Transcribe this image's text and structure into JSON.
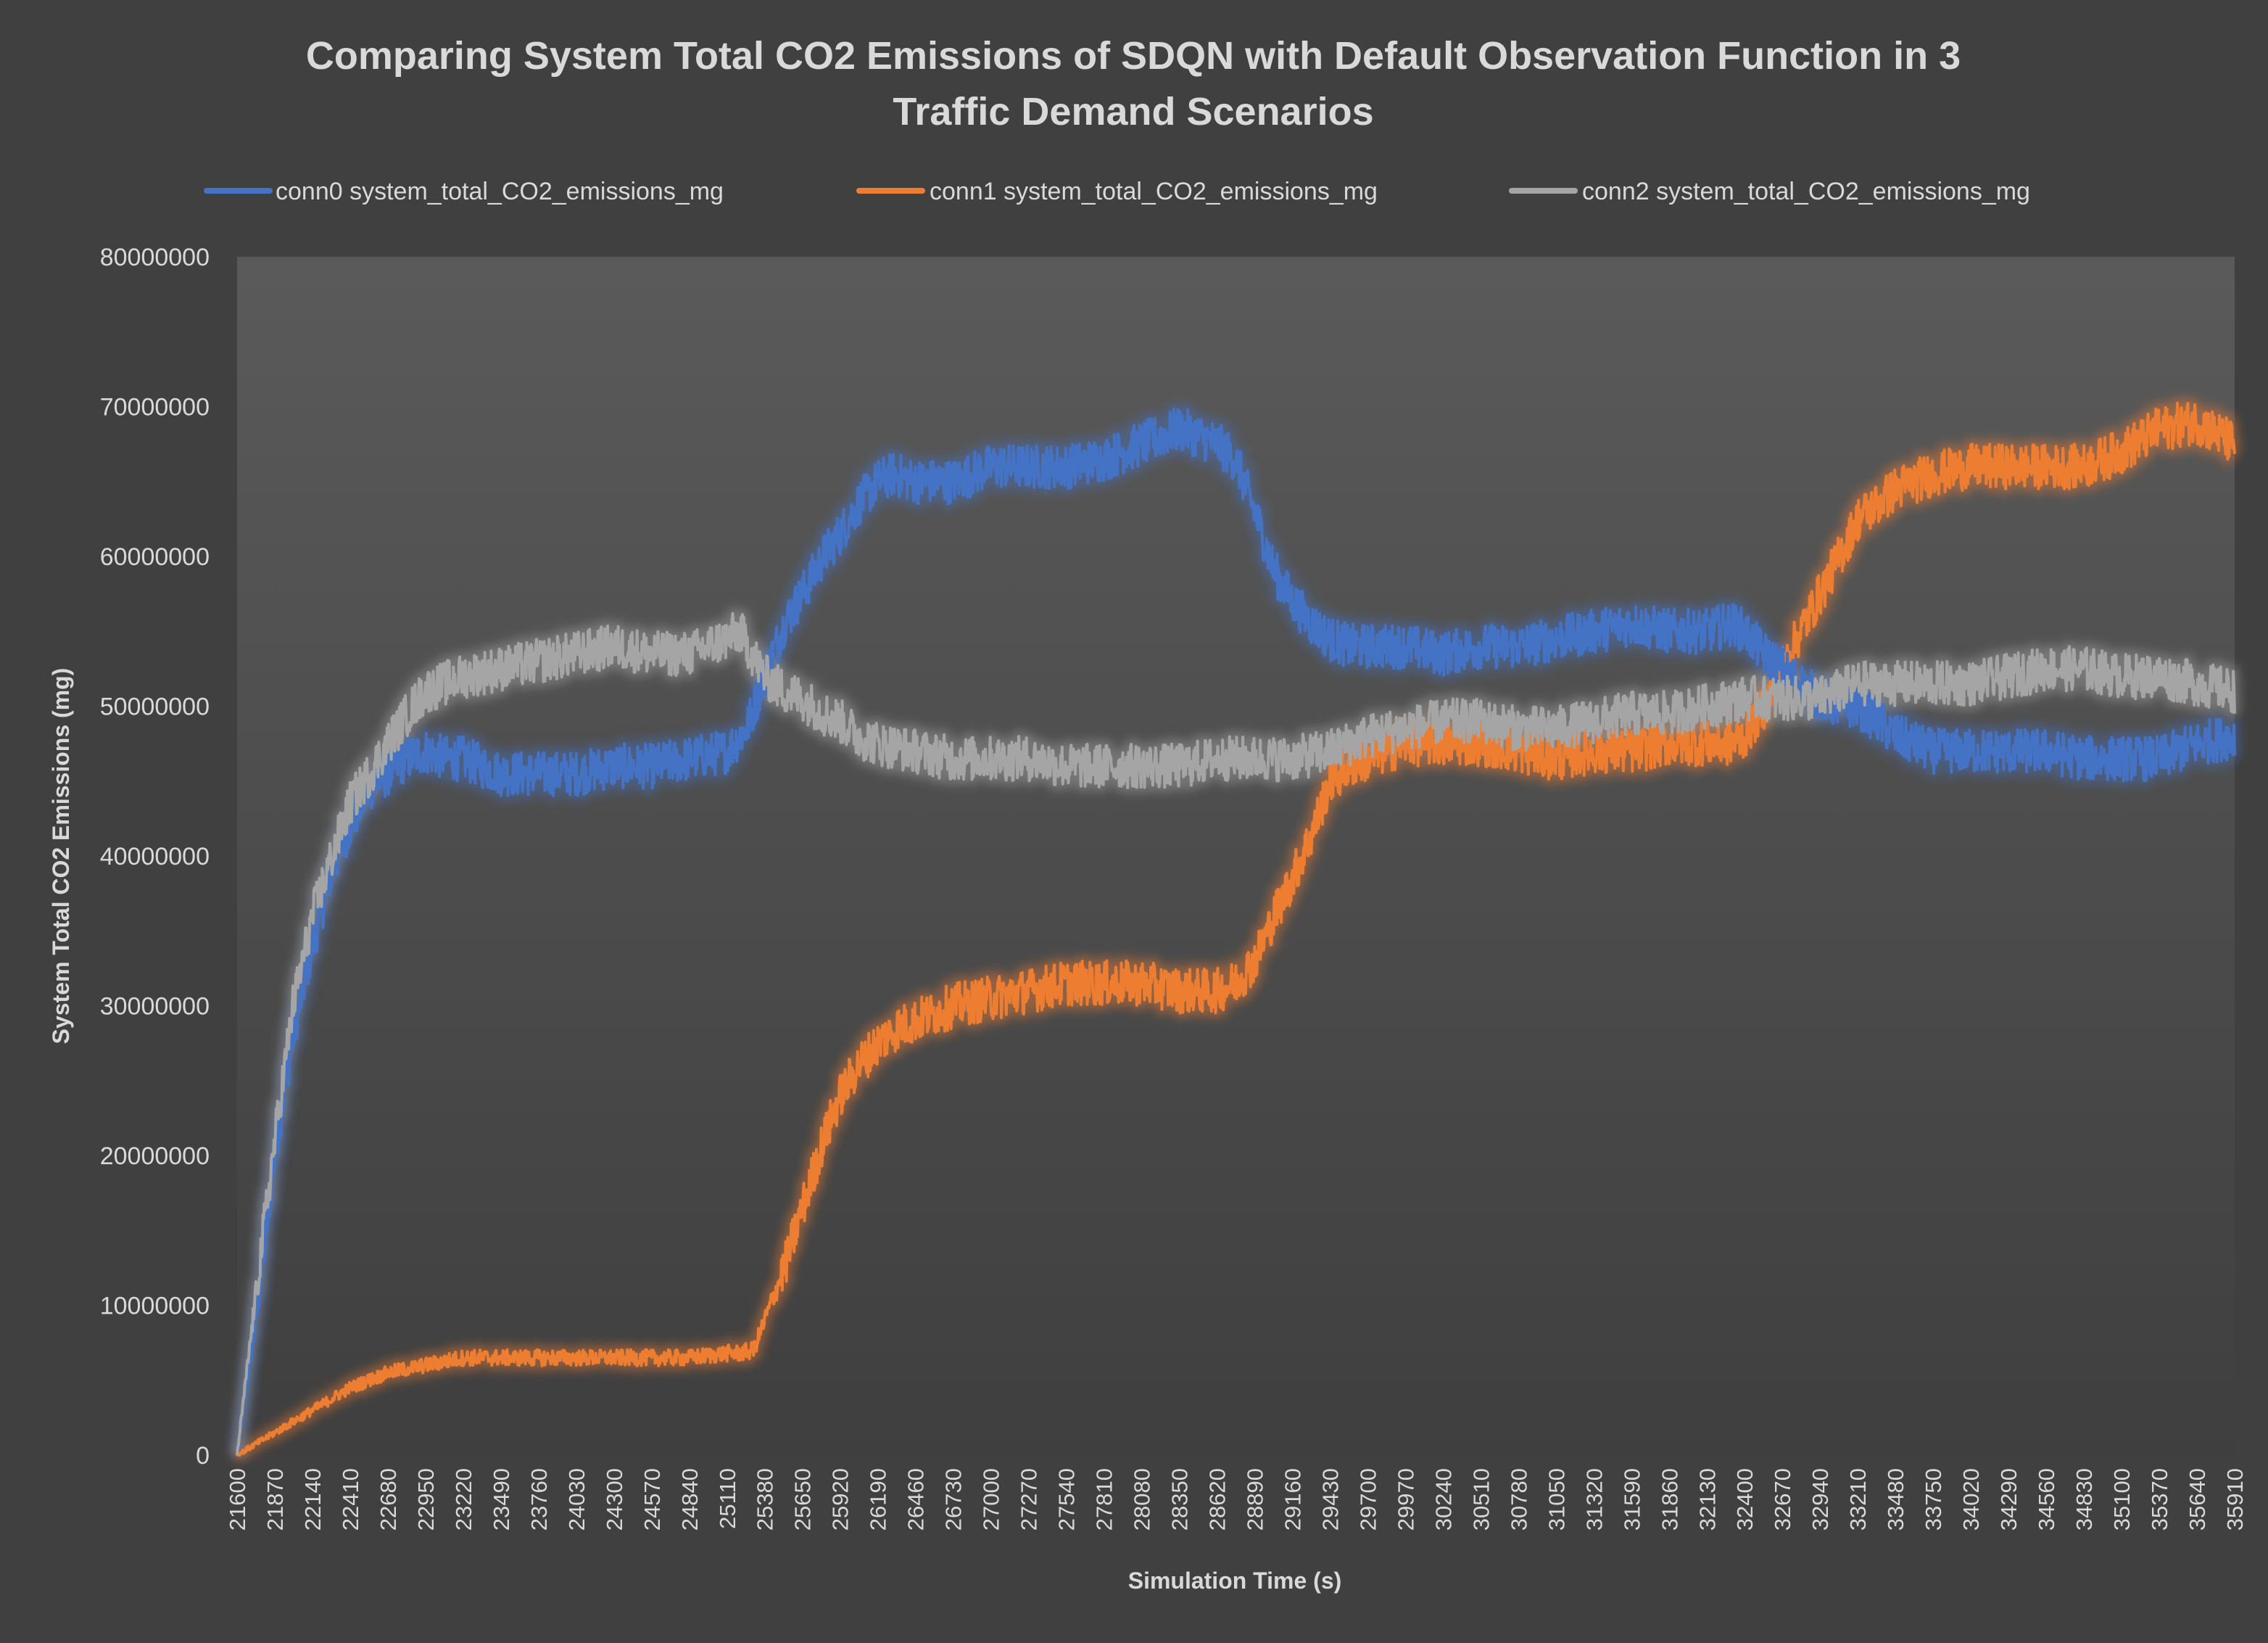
{
  "chart_data": {
    "type": "line",
    "title": "Comparing System Total CO2 Emissions of SDQN with Default Observation Function in 3 Traffic Demand Scenarios",
    "title_lines": [
      "Comparing System Total CO2 Emissions of SDQN with Default Observation Function in 3",
      "Traffic Demand Scenarios"
    ],
    "xlabel": "Simulation Time (s)",
    "ylabel": "System Total CO2 Emissions (mg)",
    "ylim": [
      0,
      80000000
    ],
    "yticks": [
      0,
      10000000,
      20000000,
      30000000,
      40000000,
      50000000,
      60000000,
      70000000,
      80000000
    ],
    "yticklabels": [
      "0",
      "10000000",
      "20000000",
      "30000000",
      "40000000",
      "50000000",
      "60000000",
      "70000000",
      "80000000"
    ],
    "xlim": [
      21600,
      35910
    ],
    "xticks": [
      21600,
      21870,
      22140,
      22410,
      22680,
      22950,
      23220,
      23490,
      23760,
      24030,
      24300,
      24570,
      24840,
      25110,
      25380,
      25650,
      25920,
      26190,
      26460,
      26730,
      27000,
      27270,
      27540,
      27810,
      28080,
      28350,
      28620,
      28890,
      29160,
      29430,
      29700,
      29970,
      30240,
      30510,
      30780,
      31050,
      31320,
      31590,
      31860,
      32130,
      32400,
      32670,
      32940,
      33210,
      33480,
      33750,
      34020,
      34290,
      34560,
      34830,
      35100,
      35370,
      35640,
      35910
    ],
    "xticklabels": [
      "21600",
      "21870",
      "22140",
      "22410",
      "22680",
      "22950",
      "23220",
      "23490",
      "23760",
      "24030",
      "24300",
      "24570",
      "24840",
      "25110",
      "25380",
      "25650",
      "25920",
      "26190",
      "26460",
      "26730",
      "27000",
      "27270",
      "27540",
      "27810",
      "28080",
      "28350",
      "28620",
      "28890",
      "29160",
      "29430",
      "29700",
      "29970",
      "30240",
      "30510",
      "30780",
      "31050",
      "31320",
      "31590",
      "31860",
      "32130",
      "32400",
      "32670",
      "32940",
      "33210",
      "33480",
      "33750",
      "34020",
      "34290",
      "34560",
      "34830",
      "35100",
      "35370",
      "35640",
      "35910"
    ],
    "grid": false,
    "legend_position": "top",
    "series": [
      {
        "name": "conn0 system_total_CO2_emissions_mg",
        "color": "#4472c4",
        "x": [
          21600,
          21750,
          21870,
          22000,
          22140,
          22280,
          22410,
          22550,
          22680,
          22820,
          22950,
          23100,
          23220,
          23490,
          23760,
          24030,
          24300,
          24570,
          24840,
          25110,
          25250,
          25380,
          25520,
          25650,
          25800,
          25920,
          26050,
          26190,
          26300,
          26460,
          26730,
          27000,
          27270,
          27540,
          27810,
          28080,
          28220,
          28350,
          28500,
          28620,
          28750,
          28890,
          29030,
          29160,
          29300,
          29430,
          29570,
          29700,
          29970,
          30240,
          30510,
          30780,
          31050,
          31320,
          31590,
          31860,
          32130,
          32300,
          32400,
          32540,
          32670,
          32800,
          32940,
          33080,
          33210,
          33350,
          33480,
          33750,
          34020,
          34290,
          34560,
          34830,
          35100,
          35370,
          35640,
          35910
        ],
        "values": [
          0,
          10000000,
          20000000,
          28000000,
          34000000,
          39000000,
          42000000,
          44500000,
          45500000,
          46500000,
          47000000,
          46500000,
          46500000,
          45500000,
          45500000,
          45500000,
          46000000,
          46000000,
          46500000,
          47000000,
          48500000,
          52000000,
          55500000,
          57500000,
          60000000,
          61500000,
          63500000,
          65000000,
          65500000,
          65000000,
          65000000,
          66000000,
          66000000,
          66000000,
          66500000,
          67500000,
          68000000,
          68500000,
          68000000,
          67500000,
          66500000,
          63000000,
          59000000,
          57000000,
          55500000,
          54500000,
          54000000,
          54000000,
          54000000,
          53500000,
          54000000,
          54000000,
          54500000,
          55000000,
          55500000,
          55000000,
          55000000,
          55500000,
          55000000,
          53500000,
          52500000,
          51500000,
          50500000,
          50000000,
          50000000,
          49000000,
          48000000,
          47000000,
          47000000,
          47000000,
          47000000,
          46500000,
          46500000,
          46500000,
          47500000,
          48000000
        ]
      },
      {
        "name": "conn1 system_total_CO2_emissions_mg",
        "color": "#ed7d31",
        "x": [
          21600,
          21870,
          22140,
          22410,
          22680,
          22950,
          23220,
          23490,
          23760,
          24030,
          24300,
          24570,
          24840,
          25110,
          25200,
          25300,
          25380,
          25520,
          25650,
          25800,
          25920,
          26050,
          26190,
          26330,
          26460,
          26730,
          27000,
          27270,
          27540,
          27810,
          28080,
          28350,
          28620,
          28750,
          28890,
          29030,
          29160,
          29300,
          29430,
          29570,
          29700,
          29970,
          30240,
          30510,
          30780,
          31050,
          31320,
          31590,
          31860,
          32130,
          32300,
          32400,
          32540,
          32670,
          32800,
          32940,
          33080,
          33210,
          33350,
          33480,
          33750,
          34020,
          34290,
          34560,
          34830,
          35100,
          35370,
          35640,
          35910
        ],
        "values": [
          0,
          1500000,
          3000000,
          4500000,
          5500000,
          6000000,
          6500000,
          6500000,
          6500000,
          6500000,
          6500000,
          6500000,
          6500000,
          6800000,
          6800000,
          7000000,
          9000000,
          12500000,
          16500000,
          21000000,
          24000000,
          26000000,
          27500000,
          28500000,
          29000000,
          30000000,
          30500000,
          31000000,
          31500000,
          31500000,
          31500000,
          31000000,
          31000000,
          31500000,
          33000000,
          36000000,
          38500000,
          41500000,
          45000000,
          46000000,
          46500000,
          47500000,
          47500000,
          47500000,
          47000000,
          46500000,
          47000000,
          47000000,
          47500000,
          47500000,
          47500000,
          48000000,
          50000000,
          52500000,
          55000000,
          57500000,
          60000000,
          62500000,
          63500000,
          64500000,
          65500000,
          66000000,
          66000000,
          66000000,
          66000000,
          67000000,
          68500000,
          69000000,
          67500000
        ]
      },
      {
        "name": "conn2 system_total_CO2_emissions_mg",
        "color": "#a5a5a5",
        "x": [
          21600,
          21750,
          21870,
          22000,
          22140,
          22280,
          22410,
          22550,
          22680,
          22820,
          22950,
          23220,
          23490,
          23760,
          24030,
          24300,
          24570,
          24840,
          25110,
          25200,
          25380,
          25520,
          25650,
          25800,
          25920,
          26050,
          26190,
          26460,
          26730,
          27000,
          27270,
          27540,
          27810,
          28080,
          28350,
          28620,
          28890,
          29160,
          29430,
          29700,
          29970,
          30240,
          30510,
          30780,
          31050,
          31320,
          31590,
          31860,
          32130,
          32400,
          32670,
          32940,
          33210,
          33480,
          33750,
          34020,
          34290,
          34560,
          34830,
          35100,
          35370,
          35640,
          35910
        ],
        "values": [
          0,
          12000000,
          21000000,
          30000000,
          36000000,
          40000000,
          43500000,
          45500000,
          47500000,
          49500000,
          51000000,
          52000000,
          52500000,
          53000000,
          53500000,
          54000000,
          53500000,
          53500000,
          54500000,
          55000000,
          52000000,
          51000000,
          50500000,
          49500000,
          49000000,
          48000000,
          47500000,
          47000000,
          46500000,
          46500000,
          46500000,
          46000000,
          46000000,
          46000000,
          46000000,
          46500000,
          46500000,
          46500000,
          47000000,
          48000000,
          48500000,
          49000000,
          49000000,
          48500000,
          48500000,
          49000000,
          49500000,
          49500000,
          50000000,
          50500000,
          50500000,
          50500000,
          51500000,
          51500000,
          51500000,
          51500000,
          52000000,
          52500000,
          52500000,
          52000000,
          52000000,
          51500000,
          51000000
        ]
      }
    ]
  }
}
